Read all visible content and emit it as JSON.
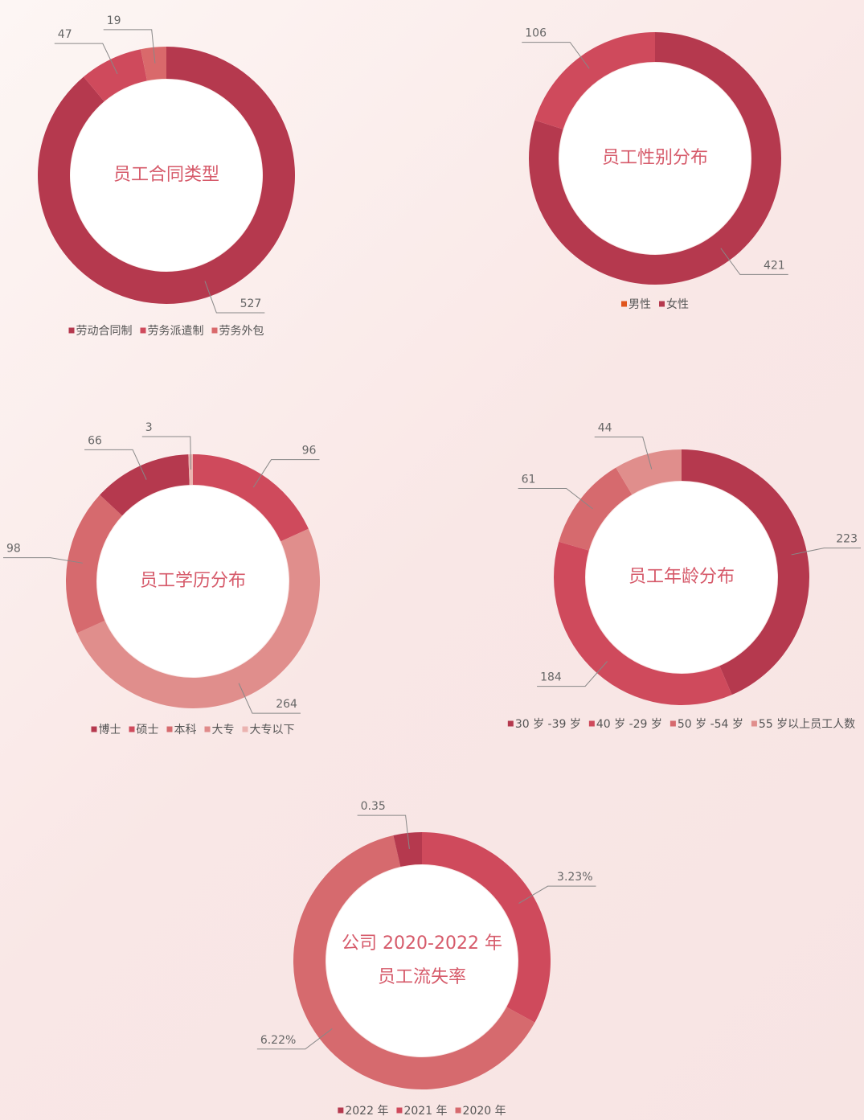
{
  "chart_data": [
    {
      "type": "pie",
      "title": "员工合同类型",
      "values": [
        527,
        47,
        19
      ],
      "colors": [
        "#b5394e",
        "#cf4a5c",
        "#d9696b"
      ],
      "legend": [
        {
          "name": "劳动合同制",
          "color": "#b5394e"
        },
        {
          "name": "劳务派遣制",
          "color": "#cf4a5c"
        },
        {
          "name": "劳务外包",
          "color": "#d9696b"
        }
      ]
    },
    {
      "type": "pie",
      "title": "员工性别分布",
      "values": [
        421,
        106
      ],
      "colors": [
        "#b5394e",
        "#cf4a5c"
      ],
      "legend": [
        {
          "name": "男性",
          "color": "#e0561e"
        },
        {
          "name": "女性",
          "color": "#b5394e"
        }
      ]
    },
    {
      "type": "pie",
      "title": "员工学历分布",
      "values": [
        96,
        264,
        98,
        66,
        3
      ],
      "colors": [
        "#cf4a5c",
        "#e08e8c",
        "#d66a6e",
        "#b5394e",
        "#ebb3b0"
      ],
      "legend": [
        {
          "name": "博士",
          "color": "#b5394e"
        },
        {
          "name": "硕士",
          "color": "#cf4a5c"
        },
        {
          "name": "本科",
          "color": "#d66a6e"
        },
        {
          "name": "大专",
          "color": "#e08a8a"
        },
        {
          "name": "大专以下",
          "color": "#ebb3b0"
        }
      ]
    },
    {
      "type": "pie",
      "title": "员工年龄分布",
      "values": [
        223,
        184,
        61,
        44
      ],
      "colors": [
        "#b5394e",
        "#cf4a5c",
        "#d66a6e",
        "#e08e8c"
      ],
      "legend": [
        {
          "name": "30 岁 -39 岁",
          "color": "#b5394e"
        },
        {
          "name": "40 岁 -29 岁",
          "color": "#cf4a5c"
        },
        {
          "name": "50 岁 -54 岁",
          "color": "#d66a6e"
        },
        {
          "name": "55 岁以上员工人数",
          "color": "#e08e8c"
        }
      ]
    },
    {
      "type": "pie",
      "title": "公司 2020-2022 年员工流失率",
      "values": [
        3.23,
        6.22,
        0.35
      ],
      "value_labels": [
        "3.23%",
        "6.22%",
        "0.35"
      ],
      "colors": [
        "#cf4a5c",
        "#d66a6e",
        "#b5394e"
      ],
      "legend": [
        {
          "name": "2022 年",
          "color": "#b5394e"
        },
        {
          "name": "2021 年",
          "color": "#cf4a5c"
        },
        {
          "name": "2020 年",
          "color": "#d66a6e"
        }
      ]
    }
  ]
}
